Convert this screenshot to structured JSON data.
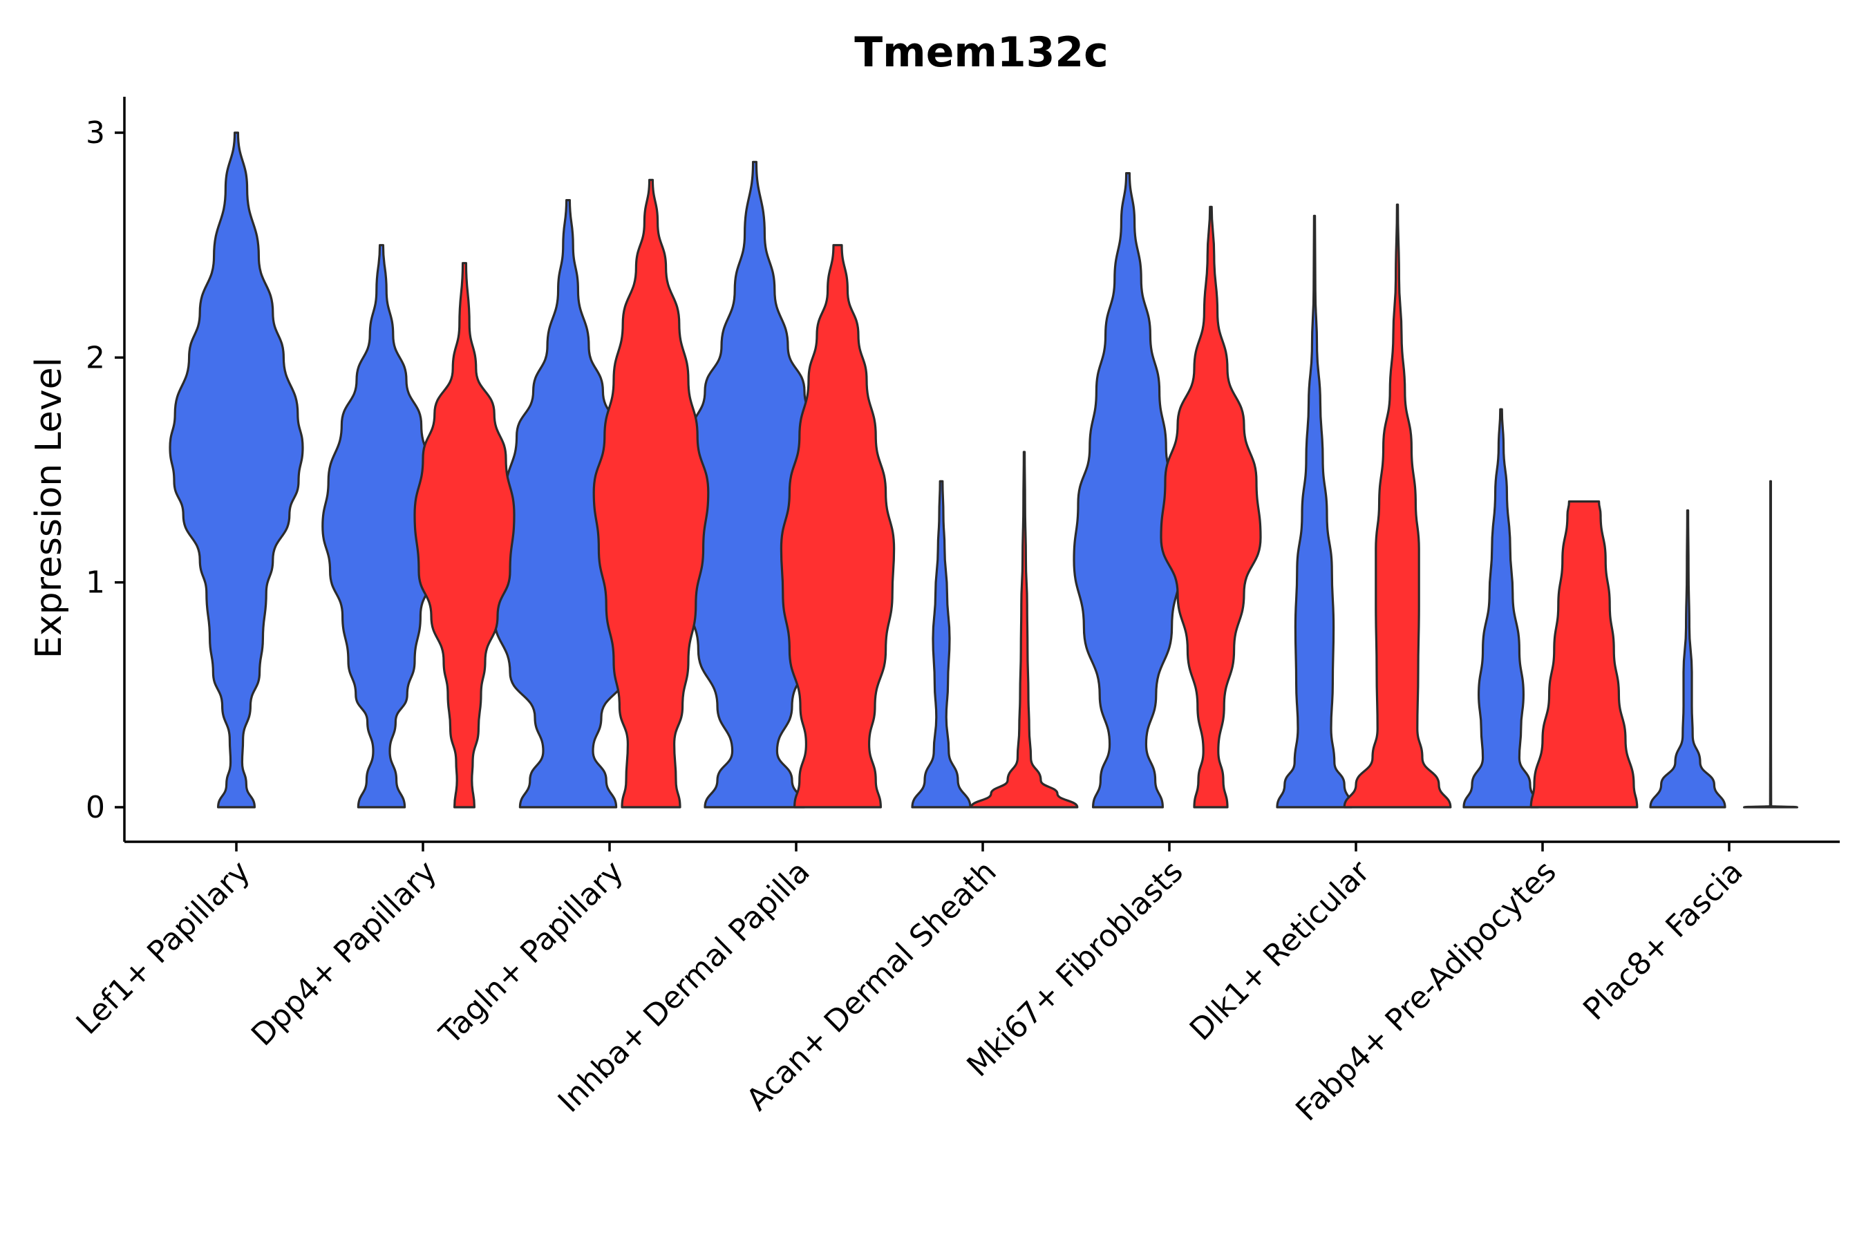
{
  "chart_data": {
    "type": "violin",
    "title": "Tmem132c",
    "xlabel": "",
    "ylabel": "Expression Level",
    "ylim": [
      -0.15,
      3.15
    ],
    "yticks": [
      0,
      1,
      2,
      3
    ],
    "categories": [
      "Lef1+ Papillary",
      "Dpp4+ Papillary",
      "Tagln+ Papillary",
      "Inhba+ Dermal Papilla",
      "Acan+ Dermal Sheath",
      "Mki67+ Fibroblasts",
      "Dlk1+ Reticular",
      "Fabp4+ Pre-Adipocytes",
      "Plac8+ Fascia"
    ],
    "colors": {
      "group1": "#4470ec",
      "group2": "#ff3030"
    },
    "series": [
      {
        "name": "group1",
        "color": "#4470ec",
        "violins": [
          {
            "category": "Lef1+ Papillary",
            "max": 3.0,
            "profile": [
              [
                0,
                0.22
              ],
              [
                0.1,
                0.12
              ],
              [
                0.2,
                0.07
              ],
              [
                0.3,
                0.08
              ],
              [
                0.45,
                0.17
              ],
              [
                0.6,
                0.28
              ],
              [
                0.75,
                0.32
              ],
              [
                0.95,
                0.36
              ],
              [
                1.1,
                0.44
              ],
              [
                1.3,
                0.64
              ],
              [
                1.45,
                0.75
              ],
              [
                1.6,
                0.8
              ],
              [
                1.75,
                0.74
              ],
              [
                2.0,
                0.57
              ],
              [
                2.2,
                0.44
              ],
              [
                2.45,
                0.27
              ],
              [
                2.75,
                0.13
              ],
              [
                3.0,
                0.02
              ]
            ]
          },
          {
            "category": "Dpp4+ Papillary",
            "max": 2.5,
            "profile": [
              [
                0,
                0.28
              ],
              [
                0.12,
                0.18
              ],
              [
                0.25,
                0.1
              ],
              [
                0.38,
                0.17
              ],
              [
                0.5,
                0.31
              ],
              [
                0.65,
                0.4
              ],
              [
                0.85,
                0.47
              ],
              [
                1.05,
                0.62
              ],
              [
                1.25,
                0.71
              ],
              [
                1.45,
                0.64
              ],
              [
                1.7,
                0.48
              ],
              [
                1.9,
                0.3
              ],
              [
                2.1,
                0.14
              ],
              [
                2.3,
                0.06
              ],
              [
                2.5,
                0.02
              ]
            ]
          },
          {
            "category": "Tagln+ Papillary",
            "max": 2.7,
            "profile": [
              [
                0,
                0.58
              ],
              [
                0.12,
                0.46
              ],
              [
                0.25,
                0.3
              ],
              [
                0.4,
                0.4
              ],
              [
                0.6,
                0.7
              ],
              [
                0.85,
                0.89
              ],
              [
                1.1,
                0.83
              ],
              [
                1.4,
                0.75
              ],
              [
                1.65,
                0.62
              ],
              [
                1.85,
                0.42
              ],
              [
                2.05,
                0.25
              ],
              [
                2.3,
                0.12
              ],
              [
                2.5,
                0.06
              ],
              [
                2.7,
                0.02
              ]
            ]
          },
          {
            "category": "Inhba+ Dermal Papilla",
            "max": 2.87,
            "profile": [
              [
                0,
                0.6
              ],
              [
                0.12,
                0.45
              ],
              [
                0.25,
                0.27
              ],
              [
                0.45,
                0.45
              ],
              [
                0.7,
                0.68
              ],
              [
                0.95,
                0.82
              ],
              [
                1.2,
                0.81
              ],
              [
                1.45,
                0.86
              ],
              [
                1.65,
                0.77
              ],
              [
                1.85,
                0.6
              ],
              [
                2.05,
                0.4
              ],
              [
                2.3,
                0.24
              ],
              [
                2.55,
                0.12
              ],
              [
                2.87,
                0.02
              ]
            ]
          },
          {
            "category": "Acan+ Dermal Sheath",
            "max": 1.45,
            "profile": [
              [
                0,
                0.35
              ],
              [
                0.12,
                0.2
              ],
              [
                0.25,
                0.09
              ],
              [
                0.4,
                0.06
              ],
              [
                0.55,
                0.08
              ],
              [
                0.75,
                0.1
              ],
              [
                0.95,
                0.07
              ],
              [
                1.15,
                0.04
              ],
              [
                1.3,
                0.025
              ],
              [
                1.45,
                0.015
              ]
            ]
          },
          {
            "category": "Mki67+ Fibroblasts",
            "max": 2.82,
            "profile": [
              [
                0,
                0.42
              ],
              [
                0.12,
                0.33
              ],
              [
                0.28,
                0.22
              ],
              [
                0.5,
                0.34
              ],
              [
                0.8,
                0.53
              ],
              [
                1.1,
                0.65
              ],
              [
                1.35,
                0.6
              ],
              [
                1.6,
                0.46
              ],
              [
                1.85,
                0.38
              ],
              [
                2.1,
                0.27
              ],
              [
                2.35,
                0.16
              ],
              [
                2.6,
                0.08
              ],
              [
                2.82,
                0.02
              ]
            ]
          },
          {
            "category": "Dlk1+ Reticular",
            "max": 2.63,
            "profile": [
              [
                0,
                0.45
              ],
              [
                0.1,
                0.36
              ],
              [
                0.2,
                0.24
              ],
              [
                0.35,
                0.2
              ],
              [
                0.55,
                0.22
              ],
              [
                0.8,
                0.23
              ],
              [
                1.05,
                0.21
              ],
              [
                1.3,
                0.15
              ],
              [
                1.55,
                0.1
              ],
              [
                1.8,
                0.07
              ],
              [
                2.05,
                0.03
              ],
              [
                2.3,
                0.01
              ],
              [
                2.63,
                0.005
              ]
            ]
          },
          {
            "category": "Fabp4+ Pre-Adipocytes",
            "max": 1.77,
            "profile": [
              [
                0,
                0.45
              ],
              [
                0.1,
                0.35
              ],
              [
                0.22,
                0.22
              ],
              [
                0.35,
                0.24
              ],
              [
                0.5,
                0.27
              ],
              [
                0.7,
                0.22
              ],
              [
                0.95,
                0.14
              ],
              [
                1.15,
                0.11
              ],
              [
                1.4,
                0.07
              ],
              [
                1.6,
                0.03
              ],
              [
                1.77,
                0.01
              ]
            ]
          },
          {
            "category": "Plac8+ Fascia",
            "max": 1.32,
            "profile": [
              [
                0,
                0.45
              ],
              [
                0.1,
                0.32
              ],
              [
                0.2,
                0.15
              ],
              [
                0.32,
                0.06
              ],
              [
                0.45,
                0.05
              ],
              [
                0.6,
                0.05
              ],
              [
                0.8,
                0.02
              ],
              [
                1.05,
                0.01
              ],
              [
                1.32,
                0.005
              ]
            ]
          }
        ]
      },
      {
        "name": "group2",
        "color": "#ff3030",
        "violins": [
          {
            "category": "Dpp4+ Papillary",
            "max": 2.42,
            "profile": [
              [
                0,
                0.12
              ],
              [
                0.12,
                0.09
              ],
              [
                0.2,
                0.1
              ],
              [
                0.35,
                0.17
              ],
              [
                0.5,
                0.2
              ],
              [
                0.65,
                0.25
              ],
              [
                0.85,
                0.4
              ],
              [
                1.05,
                0.55
              ],
              [
                1.3,
                0.6
              ],
              [
                1.55,
                0.5
              ],
              [
                1.75,
                0.36
              ],
              [
                1.95,
                0.14
              ],
              [
                2.15,
                0.06
              ],
              [
                2.42,
                0.02
              ]
            ]
          },
          {
            "category": "Tagln+ Papillary",
            "max": 2.79,
            "profile": [
              [
                0,
                0.35
              ],
              [
                0.12,
                0.3
              ],
              [
                0.28,
                0.28
              ],
              [
                0.45,
                0.38
              ],
              [
                0.65,
                0.45
              ],
              [
                0.9,
                0.54
              ],
              [
                1.15,
                0.63
              ],
              [
                1.4,
                0.69
              ],
              [
                1.65,
                0.56
              ],
              [
                1.9,
                0.45
              ],
              [
                2.15,
                0.34
              ],
              [
                2.4,
                0.18
              ],
              [
                2.6,
                0.08
              ],
              [
                2.79,
                0.02
              ]
            ]
          },
          {
            "category": "Inhba+ Dermal Papilla",
            "max": 2.5,
            "profile": [
              [
                0,
                0.52
              ],
              [
                0.12,
                0.46
              ],
              [
                0.28,
                0.38
              ],
              [
                0.45,
                0.45
              ],
              [
                0.7,
                0.58
              ],
              [
                0.95,
                0.66
              ],
              [
                1.15,
                0.68
              ],
              [
                1.4,
                0.58
              ],
              [
                1.65,
                0.46
              ],
              [
                1.9,
                0.35
              ],
              [
                2.1,
                0.25
              ],
              [
                2.3,
                0.12
              ],
              [
                2.5,
                0.05
              ]
            ]
          },
          {
            "category": "Acan+ Dermal Sheath",
            "max": 1.58,
            "profile": [
              [
                0,
                0.64
              ],
              [
                0.06,
                0.4
              ],
              [
                0.12,
                0.2
              ],
              [
                0.22,
                0.08
              ],
              [
                0.35,
                0.06
              ],
              [
                0.5,
                0.05
              ],
              [
                0.7,
                0.04
              ],
              [
                0.9,
                0.035
              ],
              [
                1.1,
                0.02
              ],
              [
                1.35,
                0.01
              ],
              [
                1.58,
                0.005
              ]
            ]
          },
          {
            "category": "Mki67+ Fibroblasts",
            "max": 2.67,
            "profile": [
              [
                0,
                0.2
              ],
              [
                0.12,
                0.15
              ],
              [
                0.25,
                0.09
              ],
              [
                0.45,
                0.16
              ],
              [
                0.7,
                0.28
              ],
              [
                0.95,
                0.4
              ],
              [
                1.2,
                0.6
              ],
              [
                1.45,
                0.55
              ],
              [
                1.7,
                0.4
              ],
              [
                1.95,
                0.2
              ],
              [
                2.2,
                0.08
              ],
              [
                2.45,
                0.04
              ],
              [
                2.67,
                0.01
              ]
            ]
          },
          {
            "category": "Dlk1+ Reticular",
            "max": 2.68,
            "profile": [
              [
                0,
                0.64
              ],
              [
                0.1,
                0.5
              ],
              [
                0.22,
                0.3
              ],
              [
                0.35,
                0.24
              ],
              [
                0.6,
                0.25
              ],
              [
                0.9,
                0.26
              ],
              [
                1.15,
                0.26
              ],
              [
                1.35,
                0.22
              ],
              [
                1.6,
                0.17
              ],
              [
                1.85,
                0.09
              ],
              [
                2.1,
                0.05
              ],
              [
                2.35,
                0.02
              ],
              [
                2.68,
                0.005
              ]
            ]
          },
          {
            "category": "Fabp4+ Pre-Adipocytes",
            "max": 1.36,
            "profile": [
              [
                0,
                0.64
              ],
              [
                0.1,
                0.6
              ],
              [
                0.3,
                0.5
              ],
              [
                0.5,
                0.42
              ],
              [
                0.7,
                0.36
              ],
              [
                0.9,
                0.31
              ],
              [
                1.1,
                0.26
              ],
              [
                1.3,
                0.2
              ],
              [
                1.36,
                0.18
              ]
            ]
          },
          {
            "category": "Plac8+ Fascia",
            "max": 1.45,
            "profile": [
              [
                0,
                0.32
              ],
              [
                0.005,
                0.006
              ],
              [
                0.3,
                0.004
              ],
              [
                0.7,
                0.004
              ],
              [
                1.1,
                0.003
              ],
              [
                1.45,
                0.003
              ]
            ]
          }
        ]
      }
    ]
  }
}
